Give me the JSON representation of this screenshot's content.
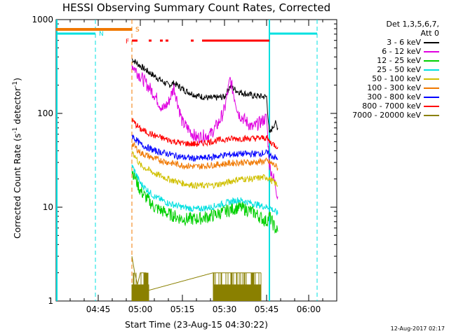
{
  "title": "HESSI Observing Summary Count Rates, Corrected",
  "ylabel_main": "Corrected Count Rate (s",
  "ylabel_sup1": "-1",
  "ylabel_mid": " detector",
  "ylabel_sup2": "-1",
  "ylabel_end": ")",
  "xlabel": "Start Time (23-Aug-15 04:30:22)",
  "timestamp": "12-Aug-2017 02:17",
  "legend": {
    "header1": "Det 1,3,5,6,7,",
    "header2": "Att 0"
  },
  "flags": {
    "S": "S",
    "N": "N",
    "F": "F"
  },
  "colors": {
    "3 - 6 keV": "#000000",
    "6 - 12 keV": "#e000e0",
    "12 - 25 keV": "#00d000",
    "25 - 50 keV": "#00e0e0",
    "50 - 100 keV": "#d0c000",
    "100 - 300 keV": "#f07800",
    "300 - 800 keV": "#0000ff",
    "800 - 7000 keV": "#ff0000",
    "7000 - 20000 keV": "#8a8000",
    "flag_S": "#f07800",
    "flag_N": "#00e0e0",
    "flag_F": "#ff0000"
  },
  "chart_data": {
    "type": "line",
    "title": "HESSI Observing Summary Count Rates, Corrected",
    "xlabel": "Start Time (23-Aug-15 04:30:22)",
    "ylabel": "Corrected Count Rate (s-1 detector-1)",
    "ylog": true,
    "ylim": [
      1,
      1000
    ],
    "xlim": [
      "04:30",
      "06:10"
    ],
    "x_ticks": [
      "04:45",
      "05:00",
      "05:15",
      "05:30",
      "05:45",
      "06:00"
    ],
    "y_ticks": [
      "1",
      "10",
      "100",
      "1000"
    ],
    "legend_position": "right",
    "series": [
      {
        "name": "3 - 6 keV",
        "x": [
          "04:57",
          "05:00",
          "05:05",
          "05:10",
          "05:12",
          "05:16",
          "05:20",
          "05:25",
          "05:30",
          "05:32",
          "05:35",
          "05:40",
          "05:45",
          "05:46",
          "05:48",
          "05:49"
        ],
        "values": [
          380,
          320,
          250,
          200,
          210,
          175,
          155,
          145,
          150,
          195,
          170,
          155,
          150,
          60,
          80,
          70
        ]
      },
      {
        "name": "6 - 12 keV",
        "x": [
          "04:57",
          "05:00",
          "05:05",
          "05:08",
          "05:10",
          "05:12",
          "05:15",
          "05:20",
          "05:25",
          "05:28",
          "05:30",
          "05:32",
          "05:35",
          "05:40",
          "05:45",
          "05:46",
          "05:48",
          "05:49"
        ],
        "values": [
          330,
          250,
          160,
          110,
          130,
          190,
          80,
          55,
          60,
          80,
          110,
          230,
          100,
          70,
          90,
          28,
          18,
          13
        ]
      },
      {
        "name": "12 - 25 keV",
        "x": [
          "04:57",
          "05:00",
          "05:05",
          "05:10",
          "05:15",
          "05:20",
          "05:25",
          "05:30",
          "05:35",
          "05:40",
          "05:45",
          "05:46",
          "05:48",
          "05:49"
        ],
        "values": [
          25,
          15,
          10,
          8.5,
          7.5,
          7.5,
          8,
          9,
          10,
          9,
          7,
          8,
          6,
          5.5
        ]
      },
      {
        "name": "25 - 50 keV",
        "x": [
          "04:57",
          "05:00",
          "05:05",
          "05:10",
          "05:15",
          "05:20",
          "05:25",
          "05:30",
          "05:35",
          "05:40",
          "05:45",
          "05:46",
          "05:48",
          "05:49"
        ],
        "values": [
          28,
          18,
          13,
          11,
          10,
          9.5,
          10,
          11,
          12,
          11,
          10,
          10,
          9,
          8.5
        ]
      },
      {
        "name": "50 - 100 keV",
        "x": [
          "04:57",
          "05:00",
          "05:05",
          "05:10",
          "05:15",
          "05:20",
          "05:25",
          "05:30",
          "05:35",
          "05:40",
          "05:45",
          "05:46",
          "05:48",
          "05:49"
        ],
        "values": [
          40,
          28,
          23,
          20,
          18,
          17,
          17,
          18,
          20,
          20,
          21,
          20,
          18,
          17
        ]
      },
      {
        "name": "100 - 300 keV",
        "x": [
          "04:57",
          "05:00",
          "05:05",
          "05:10",
          "05:15",
          "05:20",
          "05:25",
          "05:30",
          "05:35",
          "05:40",
          "05:45",
          "05:46",
          "05:48",
          "05:49"
        ],
        "values": [
          48,
          38,
          33,
          30,
          28,
          27,
          28,
          29,
          30,
          30,
          31,
          30,
          28,
          26
        ]
      },
      {
        "name": "300 - 800 keV",
        "x": [
          "04:57",
          "05:00",
          "05:05",
          "05:10",
          "05:15",
          "05:20",
          "05:25",
          "05:30",
          "05:35",
          "05:40",
          "05:45",
          "05:46",
          "05:48",
          "05:49"
        ],
        "values": [
          58,
          47,
          40,
          37,
          34,
          33,
          34,
          36,
          37,
          37,
          38,
          36,
          34,
          32
        ]
      },
      {
        "name": "800 - 7000 keV",
        "x": [
          "04:57",
          "05:00",
          "05:05",
          "05:10",
          "05:15",
          "05:20",
          "05:25",
          "05:30",
          "05:35",
          "05:40",
          "05:45",
          "05:46",
          "05:48",
          "05:49"
        ],
        "values": [
          85,
          68,
          58,
          52,
          48,
          47,
          50,
          53,
          54,
          54,
          55,
          50,
          46,
          44
        ]
      },
      {
        "name": "7000 - 20000 keV",
        "x": [
          "04:57",
          "04:58",
          "04:59",
          "05:00",
          "05:02",
          "05:03",
          "05:26",
          "05:30",
          "05:35",
          "05:40",
          "05:43"
        ],
        "values": [
          3,
          2,
          1.5,
          2,
          2,
          1.3,
          2,
          2,
          2,
          2,
          2
        ]
      }
    ],
    "flag_bars": [
      {
        "name": "S",
        "segments": [
          [
            "04:30",
            "04:57"
          ]
        ]
      },
      {
        "name": "N",
        "segments": [
          [
            "04:30",
            "04:44"
          ],
          [
            "05:46",
            "06:03"
          ]
        ]
      },
      {
        "name": "F",
        "segments": [
          [
            "04:57",
            "04:59"
          ],
          [
            "05:03",
            "05:04"
          ],
          [
            "05:07",
            "05:08"
          ],
          [
            "05:09",
            "05:10"
          ],
          [
            "05:18",
            "05:19"
          ],
          [
            "05:22",
            "05:46"
          ]
        ]
      }
    ],
    "vlines": [
      {
        "name": "N",
        "x": [
          "04:44",
          "06:03"
        ],
        "style": "dashed"
      },
      {
        "name": "S",
        "x": [
          "04:57"
        ],
        "style": "dashed"
      },
      {
        "name": "N",
        "x": [
          "05:46"
        ],
        "style": "solid"
      }
    ]
  }
}
